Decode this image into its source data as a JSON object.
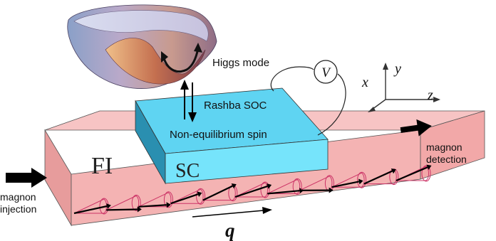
{
  "labels": {
    "fi": "FI",
    "sc": "SC",
    "rashba": "Rashba SOC",
    "noneq": "Non-equilibrium spin",
    "higgs": "Higgs mode",
    "voltmeter": "V",
    "axis_x": "x",
    "axis_y": "y",
    "axis_z": "z",
    "injection_line1": "magnon",
    "injection_line2": "injection",
    "detection_line1": "magnon",
    "detection_line2": "detection",
    "wavevector": "q"
  },
  "colors": {
    "fi_top": "#f7c4c4",
    "fi_front": "#f4b3b3",
    "fi_side": "#e79c9c",
    "sc_top": "#5fd4f2",
    "sc_front": "#76e4fb",
    "sc_side": "#2a8fb0",
    "cone": "#cc3366",
    "arrow": "#000000"
  },
  "icons": {
    "higgs_potential": "mexican-hat-potential-surface",
    "magnon_spin": "precessing-spin-cone"
  },
  "magnon_spins": {
    "count": 11
  }
}
